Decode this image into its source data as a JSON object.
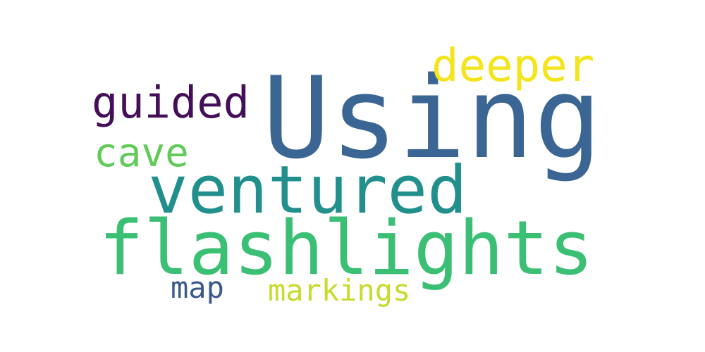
{
  "words": [
    {
      "id": "w-using",
      "text": "Using",
      "color": "#3b6693"
    },
    {
      "id": "w-flashlights",
      "text": "flashlights",
      "color": "#3bbf75"
    },
    {
      "id": "w-ventured",
      "text": "ventured",
      "color": "#218f8c"
    },
    {
      "id": "w-deeper",
      "text": "deeper",
      "color": "#f3e41b"
    },
    {
      "id": "w-guided",
      "text": "guided",
      "color": "#440f58"
    },
    {
      "id": "w-cave",
      "text": "cave",
      "color": "#62cb5a"
    },
    {
      "id": "w-markings",
      "text": "markings",
      "color": "#c7db2c"
    },
    {
      "id": "w-map",
      "text": "map",
      "color": "#3b5a8c"
    }
  ]
}
